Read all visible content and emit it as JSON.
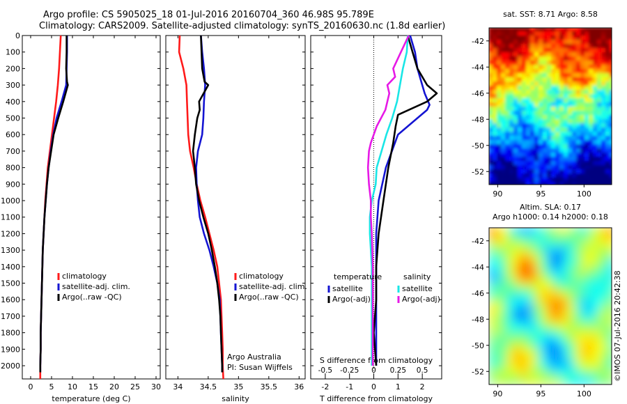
{
  "header": {
    "title_line1": "Argo profile: CS 5905025_18 01-Jul-2016 20160704_360 46.98S 95.789E",
    "title_line2": "Climatology: CARS2009. Satellite-adjusted climatology: synTS_20160630.nc (1.8d earlier)"
  },
  "colors": {
    "climatology": "#ff1a1a",
    "satellite": "#1414d2",
    "argo": "#000000",
    "cyan": "#19e6e6",
    "magenta": "#e619e6"
  },
  "annotations": {
    "owner": "Argo Australia",
    "pi": "PI: Susan Wijffels",
    "credit": "©IMOS 07-Jul-2016 20:42:38"
  },
  "map_labels": {
    "sst": "sat. SST: 8.71  Argo: 8.58",
    "sla_line1": "Altim. SLA: 0.17",
    "sla_line2": "Argo h1000: 0.14  h2000: 0.18"
  },
  "chart_data": [
    {
      "type": "line",
      "panel": "temperature",
      "xlabel": "temperature (deg C)",
      "xlim": [
        -2,
        31
      ],
      "xticks": [
        0,
        5,
        10,
        15,
        20,
        25,
        30
      ],
      "ylim": [
        2080,
        0
      ],
      "yticks": [
        0,
        100,
        200,
        300,
        400,
        500,
        600,
        700,
        800,
        900,
        1000,
        1100,
        1200,
        1300,
        1400,
        1500,
        1600,
        1700,
        1800,
        1900,
        2000
      ],
      "legend": [
        "climatology",
        "satellite-adj. clim.",
        "Argo(..raw -QC)"
      ],
      "series": [
        {
          "name": "climatology",
          "color": "#ff1a1a",
          "points": [
            [
              7.2,
              0
            ],
            [
              7.0,
              100
            ],
            [
              6.8,
              200
            ],
            [
              6.5,
              300
            ],
            [
              6.1,
              400
            ],
            [
              5.6,
              500
            ],
            [
              5.1,
              600
            ],
            [
              4.6,
              700
            ],
            [
              4.1,
              800
            ],
            [
              3.8,
              900
            ],
            [
              3.5,
              1000
            ],
            [
              3.3,
              1100
            ],
            [
              3.1,
              1200
            ],
            [
              2.9,
              1300
            ],
            [
              2.8,
              1400
            ],
            [
              2.7,
              1500
            ],
            [
              2.6,
              1600
            ],
            [
              2.5,
              1700
            ],
            [
              2.4,
              1800
            ],
            [
              2.4,
              1900
            ],
            [
              2.3,
              2000
            ],
            [
              2.3,
              2080
            ]
          ]
        },
        {
          "name": "satellite-adj. clim.",
          "color": "#1414d2",
          "points": [
            [
              8.7,
              0
            ],
            [
              8.7,
              100
            ],
            [
              8.6,
              200
            ],
            [
              8.5,
              300
            ],
            [
              7.4,
              400
            ],
            [
              6.2,
              500
            ],
            [
              5.4,
              600
            ],
            [
              4.8,
              700
            ],
            [
              4.3,
              800
            ],
            [
              3.9,
              900
            ],
            [
              3.6,
              1000
            ],
            [
              3.3,
              1100
            ],
            [
              3.1,
              1200
            ],
            [
              2.9,
              1300
            ],
            [
              2.8,
              1400
            ],
            [
              2.7,
              1500
            ],
            [
              2.6,
              1600
            ],
            [
              2.5,
              1700
            ],
            [
              2.4,
              1800
            ],
            [
              2.4,
              1900
            ],
            [
              2.3,
              2000
            ],
            [
              2.3,
              2040
            ]
          ]
        },
        {
          "name": "Argo(..raw -QC)",
          "color": "#000000",
          "points": [
            [
              8.6,
              0
            ],
            [
              8.6,
              100
            ],
            [
              8.5,
              200
            ],
            [
              8.7,
              280
            ],
            [
              8.9,
              300
            ],
            [
              7.8,
              400
            ],
            [
              6.6,
              500
            ],
            [
              5.5,
              600
            ],
            [
              4.9,
              700
            ],
            [
              4.3,
              800
            ],
            [
              3.9,
              900
            ],
            [
              3.6,
              1000
            ],
            [
              3.3,
              1100
            ],
            [
              3.1,
              1200
            ],
            [
              2.9,
              1300
            ],
            [
              2.8,
              1400
            ],
            [
              2.7,
              1500
            ],
            [
              2.6,
              1600
            ],
            [
              2.5,
              1700
            ],
            [
              2.4,
              1800
            ],
            [
              2.4,
              1900
            ],
            [
              2.3,
              2000
            ],
            [
              2.3,
              2040
            ]
          ]
        }
      ]
    },
    {
      "type": "line",
      "panel": "salinity",
      "xlabel": "salinity",
      "xlim": [
        33.8,
        36.1
      ],
      "xticks": [
        34,
        34.5,
        35,
        35.5,
        36
      ],
      "ylim": [
        2080,
        0
      ],
      "legend": [
        "climatology",
        "satellite-adj. clim.",
        "Argo(..raw -QC)"
      ],
      "series": [
        {
          "name": "climatology",
          "color": "#ff1a1a",
          "points": [
            [
              34.03,
              0
            ],
            [
              34.02,
              100
            ],
            [
              34.09,
              200
            ],
            [
              34.14,
              300
            ],
            [
              34.15,
              400
            ],
            [
              34.16,
              500
            ],
            [
              34.17,
              600
            ],
            [
              34.2,
              700
            ],
            [
              34.26,
              800
            ],
            [
              34.31,
              900
            ],
            [
              34.37,
              1000
            ],
            [
              34.45,
              1100
            ],
            [
              34.52,
              1200
            ],
            [
              34.59,
              1300
            ],
            [
              34.65,
              1400
            ],
            [
              34.68,
              1500
            ],
            [
              34.71,
              1600
            ],
            [
              34.72,
              1700
            ],
            [
              34.73,
              1800
            ],
            [
              34.74,
              1900
            ],
            [
              34.74,
              2000
            ],
            [
              34.75,
              2080
            ]
          ]
        },
        {
          "name": "satellite-adj. clim.",
          "color": "#1414d2",
          "points": [
            [
              34.38,
              0
            ],
            [
              34.4,
              100
            ],
            [
              34.43,
              200
            ],
            [
              34.45,
              300
            ],
            [
              34.43,
              400
            ],
            [
              34.42,
              500
            ],
            [
              34.4,
              600
            ],
            [
              34.33,
              700
            ],
            [
              34.3,
              800
            ],
            [
              34.31,
              900
            ],
            [
              34.33,
              1000
            ],
            [
              34.36,
              1100
            ],
            [
              34.43,
              1200
            ],
            [
              34.52,
              1300
            ],
            [
              34.59,
              1400
            ],
            [
              34.65,
              1500
            ],
            [
              34.69,
              1600
            ],
            [
              34.7,
              1700
            ],
            [
              34.71,
              1800
            ],
            [
              34.72,
              1900
            ],
            [
              34.73,
              2000
            ],
            [
              34.73,
              2040
            ]
          ]
        },
        {
          "name": "Argo(..raw -QC)",
          "color": "#000000",
          "points": [
            [
              34.38,
              0
            ],
            [
              34.39,
              100
            ],
            [
              34.4,
              200
            ],
            [
              34.44,
              280
            ],
            [
              34.5,
              300
            ],
            [
              34.35,
              400
            ],
            [
              34.36,
              450
            ],
            [
              34.32,
              500
            ],
            [
              34.28,
              600
            ],
            [
              34.25,
              700
            ],
            [
              34.28,
              800
            ],
            [
              34.3,
              900
            ],
            [
              34.35,
              1000
            ],
            [
              34.42,
              1100
            ],
            [
              34.5,
              1200
            ],
            [
              34.56,
              1300
            ],
            [
              34.61,
              1400
            ],
            [
              34.65,
              1500
            ],
            [
              34.68,
              1600
            ],
            [
              34.7,
              1700
            ],
            [
              34.71,
              1800
            ],
            [
              34.72,
              1900
            ],
            [
              34.73,
              2000
            ],
            [
              34.73,
              2040
            ]
          ]
        }
      ]
    },
    {
      "type": "line",
      "panel": "difference",
      "xlabel": "T difference from climatology",
      "xlabel_top": "S difference from climatology",
      "xlim": [
        -2.6,
        2.8
      ],
      "xticks": [
        -2,
        -1,
        0,
        1,
        2
      ],
      "xlim_top": [
        -0.65,
        0.7
      ],
      "xticks_top": [
        -0.5,
        -0.25,
        0,
        0.25,
        0.5
      ],
      "xticklabels_top": [
        "-0.5",
        "-0.25",
        "0",
        "0.25",
        "0.5"
      ],
      "ylim": [
        2080,
        0
      ],
      "legend_groups": [
        {
          "title": "temperature",
          "items": [
            "satellite",
            "Argo(-adj)"
          ]
        },
        {
          "title": "salinity",
          "items": [
            "satellite",
            "Argo(-adj)"
          ]
        }
      ],
      "series": [
        {
          "name": "satellite",
          "group": "temperature",
          "color": "#1414d2",
          "axis": "T",
          "points": [
            [
              1.5,
              0
            ],
            [
              1.7,
              100
            ],
            [
              1.8,
              200
            ],
            [
              2.0,
              300
            ],
            [
              2.1,
              350
            ],
            [
              2.3,
              420
            ],
            [
              2.2,
              450
            ],
            [
              1.8,
              500
            ],
            [
              1.0,
              600
            ],
            [
              0.5,
              800
            ],
            [
              0.2,
              1000
            ],
            [
              0.1,
              1200
            ],
            [
              0.1,
              1400
            ],
            [
              0.1,
              1600
            ],
            [
              0.1,
              1800
            ],
            [
              0.1,
              2000
            ]
          ]
        },
        {
          "name": "Argo(-adj)",
          "group": "temperature",
          "color": "#000000",
          "axis": "T",
          "points": [
            [
              1.4,
              0
            ],
            [
              1.6,
              100
            ],
            [
              1.8,
              200
            ],
            [
              2.2,
              300
            ],
            [
              2.6,
              350
            ],
            [
              2.2,
              400
            ],
            [
              1.0,
              480
            ],
            [
              0.9,
              550
            ],
            [
              0.8,
              650
            ],
            [
              0.6,
              800
            ],
            [
              0.4,
              1000
            ],
            [
              0.2,
              1200
            ],
            [
              0.1,
              1400
            ],
            [
              0.1,
              1600
            ],
            [
              0.0,
              1800
            ],
            [
              0.1,
              2000
            ]
          ]
        },
        {
          "name": "satellite",
          "group": "salinity",
          "color": "#19e6e6",
          "axis": "S",
          "points": [
            [
              0.35,
              0
            ],
            [
              0.34,
              100
            ],
            [
              0.3,
              200
            ],
            [
              0.27,
              300
            ],
            [
              0.24,
              400
            ],
            [
              0.19,
              500
            ],
            [
              0.13,
              600
            ],
            [
              0.08,
              700
            ],
            [
              0.03,
              800
            ],
            [
              0.02,
              900
            ],
            [
              -0.02,
              1000
            ],
            [
              -0.04,
              1100
            ],
            [
              -0.04,
              1200
            ],
            [
              -0.03,
              1300
            ],
            [
              -0.02,
              1400
            ],
            [
              -0.02,
              1600
            ],
            [
              -0.02,
              1800
            ],
            [
              -0.02,
              2000
            ]
          ]
        },
        {
          "name": "Argo(-adj)",
          "group": "salinity",
          "color": "#e619e6",
          "axis": "S",
          "points": [
            [
              0.36,
              0
            ],
            [
              0.28,
              100
            ],
            [
              0.2,
              200
            ],
            [
              0.22,
              250
            ],
            [
              0.14,
              300
            ],
            [
              0.16,
              350
            ],
            [
              0.12,
              450
            ],
            [
              0.03,
              550
            ],
            [
              -0.03,
              650
            ],
            [
              -0.05,
              700
            ],
            [
              -0.06,
              800
            ],
            [
              -0.05,
              900
            ],
            [
              -0.03,
              1000
            ],
            [
              -0.03,
              1100
            ],
            [
              -0.02,
              1200
            ],
            [
              -0.01,
              1400
            ],
            [
              -0.01,
              1600
            ],
            [
              -0.01,
              1800
            ],
            [
              -0.01,
              2000
            ]
          ]
        }
      ]
    },
    {
      "type": "heatmap",
      "panel": "sat-sst-map",
      "title": "sat. SST: 8.71  Argo: 8.58",
      "xlim": [
        89,
        103.2
      ],
      "ylim": [
        -53,
        -41
      ],
      "xticks": [
        90,
        95,
        100
      ],
      "yticks": [
        -42,
        -44,
        -46,
        -48,
        -50,
        -52
      ],
      "colormap": "jet",
      "description": "warm (red/orange) in north, transition to green/cyan mid, blue/navy in south"
    },
    {
      "type": "heatmap",
      "panel": "altimetry-sla-map",
      "title": "Altim. SLA: 0.17 / Argo h1000: 0.14  h2000: 0.18",
      "xlim": [
        89,
        103.2
      ],
      "ylim": [
        -53,
        -41
      ],
      "xticks": [
        90,
        95,
        100
      ],
      "yticks": [
        -42,
        -44,
        -46,
        -48,
        -50,
        -52
      ],
      "colormap": "jet",
      "description": "mostly green with yellow, cyan and orange eddy patches"
    }
  ]
}
